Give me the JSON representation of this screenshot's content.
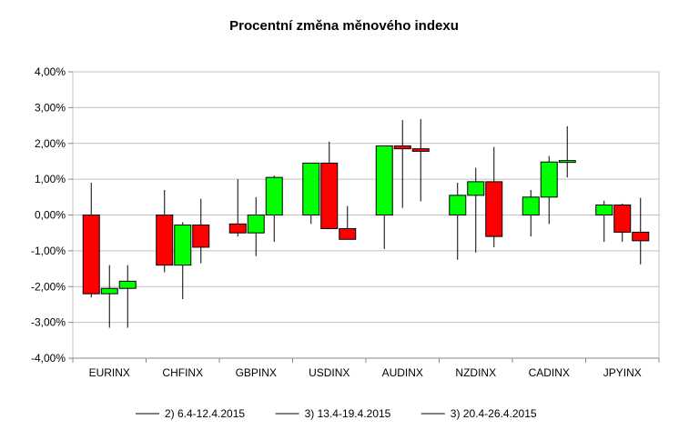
{
  "chart_data": {
    "type": "candlestick",
    "title": "Procentní změna měnového indexu",
    "ylim": [
      -4,
      4
    ],
    "y_ticks": [
      4,
      3,
      2,
      1,
      0,
      -1,
      -2,
      -3,
      -4
    ],
    "y_tick_labels": [
      "4,00%",
      "3,00%",
      "2,00%",
      "1,00%",
      "0,00%",
      "-1,00%",
      "-2,00%",
      "-3,00%",
      "-4,00%"
    ],
    "grid": true,
    "legend_position": "bottom",
    "colors": {
      "up": "#00ff00",
      "down": "#ff0000",
      "outline": "#000000",
      "grid": "#c0c0c0"
    },
    "categories": [
      "EURINX",
      "CHFINX",
      "GBPINX",
      "USDINX",
      "AUDINX",
      "NZDINX",
      "CADINX",
      "JPYINX"
    ],
    "series": [
      {
        "name": "2) 6.4-12.4.2015",
        "candles": [
          {
            "open": 0.0,
            "close": -2.2,
            "high": 0.9,
            "low": -2.3
          },
          {
            "open": 0.0,
            "close": -1.4,
            "high": 0.7,
            "low": -1.6
          },
          {
            "open": -0.25,
            "close": -0.5,
            "high": 1.0,
            "low": -0.6
          },
          {
            "open": 0.0,
            "close": 1.45,
            "high": 1.45,
            "low": -0.25
          },
          {
            "open": 0.0,
            "close": 1.93,
            "high": 1.93,
            "low": -0.95
          },
          {
            "open": 0.0,
            "close": 0.55,
            "high": 0.9,
            "low": -1.25
          },
          {
            "open": 0.0,
            "close": 0.5,
            "high": 0.7,
            "low": -0.6
          },
          {
            "open": 0.0,
            "close": 0.28,
            "high": 0.4,
            "low": -0.75
          }
        ]
      },
      {
        "name": "3) 13.4-19.4.2015",
        "candles": [
          {
            "open": -2.2,
            "close": -2.05,
            "high": -1.4,
            "low": -3.15
          },
          {
            "open": -1.4,
            "close": -0.28,
            "high": -0.2,
            "low": -2.35
          },
          {
            "open": -0.5,
            "close": 0.0,
            "high": 0.5,
            "low": -1.15
          },
          {
            "open": 1.45,
            "close": -0.38,
            "high": 2.05,
            "low": -0.4
          },
          {
            "open": 1.93,
            "close": 1.85,
            "high": 2.65,
            "low": 0.2
          },
          {
            "open": 0.55,
            "close": 0.93,
            "high": 1.32,
            "low": -1.05
          },
          {
            "open": 0.5,
            "close": 1.48,
            "high": 1.65,
            "low": -0.25
          },
          {
            "open": 0.28,
            "close": -0.48,
            "high": 0.32,
            "low": -0.75
          }
        ]
      },
      {
        "name": "3) 20.4-26.4.2015",
        "candles": [
          {
            "open": -2.05,
            "close": -1.85,
            "high": -1.4,
            "low": -3.15
          },
          {
            "open": -0.28,
            "close": -0.9,
            "high": 0.45,
            "low": -1.35
          },
          {
            "open": 0.0,
            "close": 1.05,
            "high": 1.1,
            "low": -0.75
          },
          {
            "open": -0.38,
            "close": -0.68,
            "high": 0.25,
            "low": -0.68
          },
          {
            "open": 1.85,
            "close": 1.78,
            "high": 2.68,
            "low": 0.38
          },
          {
            "open": 0.93,
            "close": -0.6,
            "high": 1.9,
            "low": -0.9
          },
          {
            "open": 1.48,
            "close": 1.52,
            "high": 2.48,
            "low": 1.05
          },
          {
            "open": -0.48,
            "close": -0.72,
            "high": 0.48,
            "low": -1.38
          }
        ]
      }
    ]
  }
}
